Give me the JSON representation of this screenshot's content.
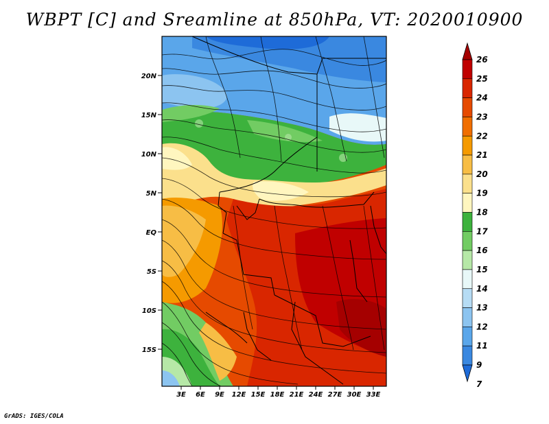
{
  "title": "WBPT [C] and Sreamline at 850hPa, VT: 2020010900",
  "footer": "GrADS: IGES/COLA",
  "map": {
    "lat_labels": [
      "20N",
      "15N",
      "10N",
      "5N",
      "EQ",
      "5S",
      "10S",
      "15S"
    ],
    "lon_labels": [
      "3E",
      "6E",
      "9E",
      "12E",
      "15E",
      "18E",
      "21E",
      "24E",
      "27E",
      "30E",
      "33E"
    ]
  },
  "colorbar": {
    "labels": [
      "26",
      "25",
      "24",
      "23",
      "22",
      "21",
      "20",
      "19",
      "18",
      "17",
      "16",
      "15",
      "14",
      "13",
      "12",
      "11",
      "9",
      "7"
    ],
    "colors": [
      "#a50000",
      "#c00000",
      "#d92600",
      "#e64a00",
      "#f06e00",
      "#f59a00",
      "#f7bd45",
      "#fbe08c",
      "#fff6bf",
      "#3db23d",
      "#72cc63",
      "#b6e8a7",
      "#e8f8f8",
      "#b6dcf4",
      "#8cc4f0",
      "#5aa6ea",
      "#3a88e0",
      "#1e6bd8"
    ]
  }
}
